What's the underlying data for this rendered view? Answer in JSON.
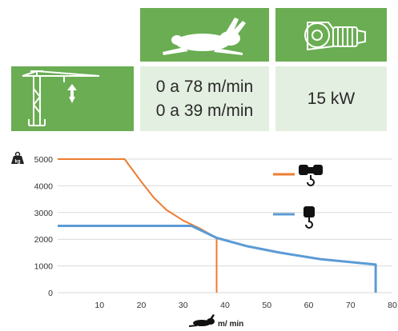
{
  "specs": {
    "speed_line_1": "0 a 78 m/min",
    "speed_line_2": "0 a 39 m/min",
    "power": "15 kW"
  },
  "icons": {
    "speed": "rabbit-icon",
    "motor": "gear-motor-icon",
    "crane": "tower-crane-hoist-icon",
    "weight": "weight-kg-icon",
    "hook_4": "four-fall-hook-icon",
    "hook_2": "two-fall-hook-icon"
  },
  "colors": {
    "green": "#6aad53",
    "pale_green": "#e3efe0",
    "orange": "#ed7d31",
    "blue": "#5b9bd5"
  },
  "chart_data": {
    "type": "line",
    "xlabel": "m/ min",
    "ylabel": "kg",
    "xlim": [
      0,
      80
    ],
    "ylim": [
      0,
      5000
    ],
    "xticks": [
      "10",
      "20",
      "30",
      "40",
      "50",
      "60",
      "70",
      "80"
    ],
    "yticks": [
      "0",
      "1000",
      "2000",
      "3000",
      "4000",
      "5000"
    ],
    "grid": "horizontal",
    "legend": "right, hook icons",
    "series": [
      {
        "color": "#ed7d31",
        "legend_icon": "four-fall-hook-icon",
        "x": [
          0,
          16,
          20,
          23,
          26,
          30,
          34,
          38,
          38
        ],
        "y": [
          5000,
          5000,
          4150,
          3550,
          3100,
          2700,
          2400,
          2050,
          0
        ]
      },
      {
        "color": "#5b9bd5",
        "legend_icon": "two-fall-hook-icon",
        "x": [
          0,
          32,
          38,
          45,
          53,
          63,
          76,
          76
        ],
        "y": [
          2500,
          2500,
          2050,
          1750,
          1500,
          1250,
          1050,
          0
        ]
      }
    ]
  }
}
